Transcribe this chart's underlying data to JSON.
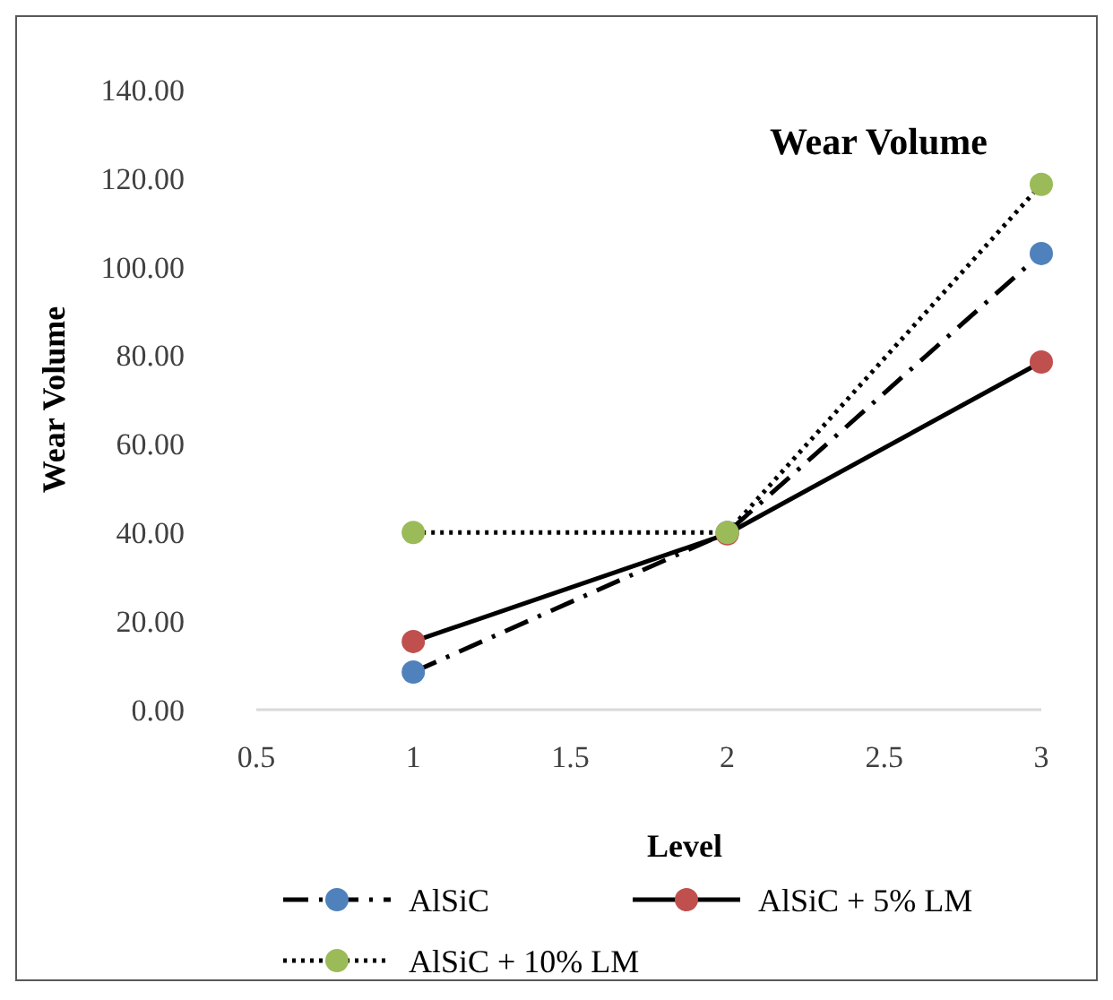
{
  "chart_data": {
    "type": "line",
    "title": "Wear Volume",
    "xlabel": "Level",
    "ylabel": "Wear Volume",
    "x": [
      1,
      2,
      3
    ],
    "series": [
      {
        "name": "AlSiC",
        "color": "#4f81bd",
        "values": [
          8.5,
          40,
          103
        ],
        "line_style": "dashed"
      },
      {
        "name": "AlSiC + 5% LM",
        "color": "#c0504d",
        "values": [
          15.4,
          39.7,
          78.5
        ],
        "line_style": "solid"
      },
      {
        "name": "AlSiC + 10% LM",
        "color": "#9bbb59",
        "values": [
          40,
          40,
          118.6
        ],
        "line_style": "dotted"
      }
    ],
    "xlim": [
      0.5,
      3
    ],
    "xticks": [
      0.5,
      1,
      1.5,
      2,
      2.5,
      3
    ],
    "ylim": [
      0,
      140
    ],
    "yticks": [
      {
        "value": 0,
        "label": "0.00"
      },
      {
        "value": 20,
        "label": "20.00"
      },
      {
        "value": 40,
        "label": "40.00"
      },
      {
        "value": 60,
        "label": "60.00"
      },
      {
        "value": 80,
        "label": "80.00"
      },
      {
        "value": 100,
        "label": "100.00"
      },
      {
        "value": 120,
        "label": "120.00"
      },
      {
        "value": 140,
        "label": "140.00"
      }
    ],
    "marker": "circle",
    "legend": "bottom",
    "grid": false
  }
}
